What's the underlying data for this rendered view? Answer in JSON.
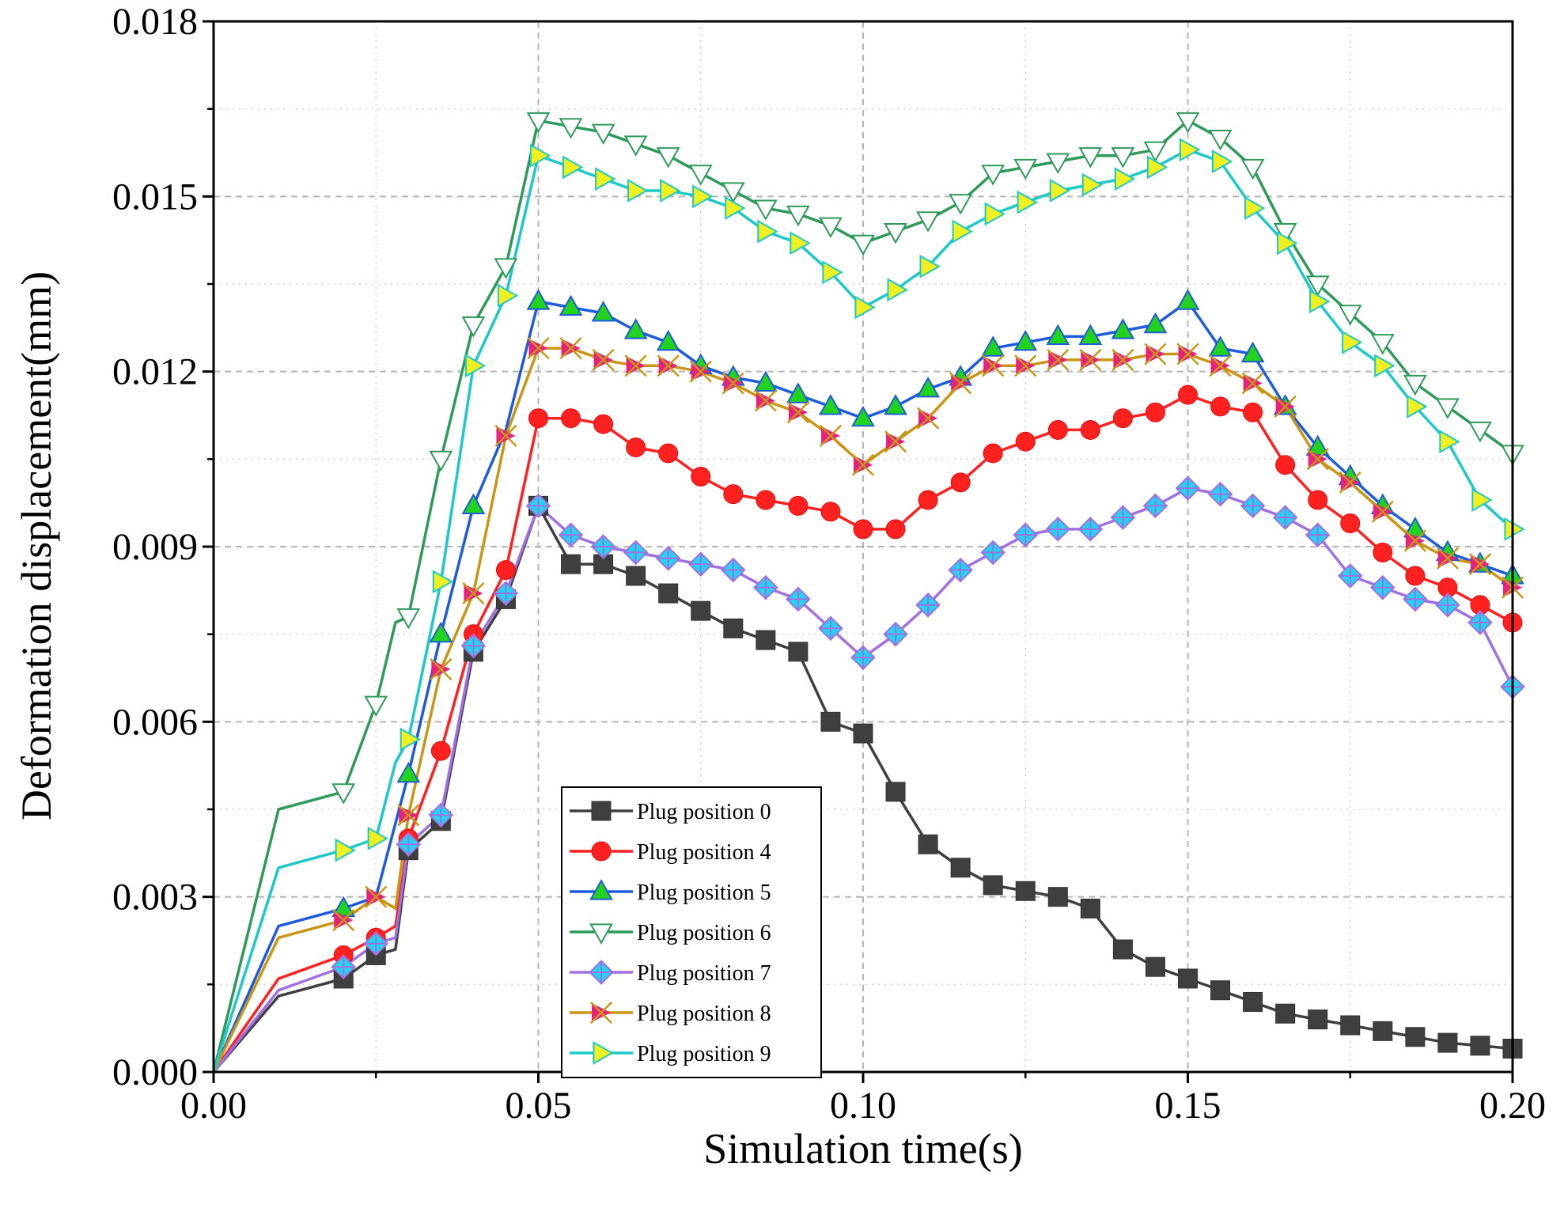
{
  "chart_data": {
    "type": "line",
    "xlabel": "Simulation time(s)",
    "ylabel": "Deformation displacement(mm)",
    "xlim": [
      0,
      0.2
    ],
    "ylim": [
      0,
      0.018
    ],
    "x_ticks": [
      "0.00",
      "0.05",
      "0.10",
      "0.15",
      "0.20"
    ],
    "y_ticks": [
      "0.000",
      "0.003",
      "0.006",
      "0.009",
      "0.012",
      "0.015",
      "0.018"
    ],
    "grid": true,
    "legend_position": "bottom-center",
    "series": [
      {
        "name": "Plug position 0",
        "color": "#3f3f3f",
        "marker": "square",
        "x": [
          0,
          0.01,
          0.02,
          0.025,
          0.028,
          0.03,
          0.035,
          0.04,
          0.045,
          0.05,
          0.055,
          0.06,
          0.065,
          0.07,
          0.075,
          0.08,
          0.085,
          0.09,
          0.095,
          0.1,
          0.105,
          0.11,
          0.115,
          0.12,
          0.125,
          0.13,
          0.135,
          0.14,
          0.145,
          0.15,
          0.155,
          0.16,
          0.165,
          0.17,
          0.175,
          0.18,
          0.185,
          0.19,
          0.195,
          0.2
        ],
        "y": [
          0,
          0.0013,
          0.0016,
          0.002,
          0.0021,
          0.0038,
          0.0043,
          0.0072,
          0.0081,
          0.0097,
          0.0087,
          0.0087,
          0.0085,
          0.0082,
          0.0079,
          0.0076,
          0.0074,
          0.0072,
          0.006,
          0.0058,
          0.0048,
          0.0039,
          0.0035,
          0.0032,
          0.0031,
          0.003,
          0.0028,
          0.0021,
          0.0018,
          0.0016,
          0.0014,
          0.0012,
          0.001,
          0.0009,
          0.0008,
          0.0007,
          0.0006,
          0.0005,
          0.00045,
          0.0004
        ],
        "marker_x": [
          0.02,
          0.025,
          0.03,
          0.035,
          0.04,
          0.045,
          0.05,
          0.055,
          0.06,
          0.065,
          0.07,
          0.075,
          0.08,
          0.085,
          0.09,
          0.095,
          0.1,
          0.105,
          0.11,
          0.115,
          0.12,
          0.125,
          0.13,
          0.135,
          0.14,
          0.145,
          0.15,
          0.155,
          0.16,
          0.165,
          0.17,
          0.175,
          0.18,
          0.185,
          0.19,
          0.195,
          0.2
        ]
      },
      {
        "name": "Plug position 4",
        "color": "#ff2020",
        "marker": "circle",
        "x": [
          0,
          0.01,
          0.02,
          0.025,
          0.028,
          0.03,
          0.035,
          0.04,
          0.045,
          0.05,
          0.055,
          0.06,
          0.065,
          0.07,
          0.075,
          0.08,
          0.085,
          0.09,
          0.095,
          0.1,
          0.105,
          0.11,
          0.115,
          0.12,
          0.125,
          0.13,
          0.135,
          0.14,
          0.145,
          0.15,
          0.155,
          0.16,
          0.165,
          0.17,
          0.175,
          0.18,
          0.185,
          0.19,
          0.195,
          0.2
        ],
        "y": [
          0,
          0.0016,
          0.002,
          0.0023,
          0.0025,
          0.004,
          0.0055,
          0.0075,
          0.0086,
          0.0112,
          0.0112,
          0.0111,
          0.0107,
          0.0106,
          0.0102,
          0.0099,
          0.0098,
          0.0097,
          0.0096,
          0.0093,
          0.0093,
          0.0098,
          0.0101,
          0.0106,
          0.0108,
          0.011,
          0.011,
          0.0112,
          0.0113,
          0.0116,
          0.0114,
          0.0113,
          0.0104,
          0.0098,
          0.0094,
          0.0089,
          0.0085,
          0.0083,
          0.008,
          0.0077
        ],
        "marker_x": [
          0.02,
          0.025,
          0.03,
          0.035,
          0.04,
          0.045,
          0.05,
          0.055,
          0.06,
          0.065,
          0.07,
          0.075,
          0.08,
          0.085,
          0.09,
          0.095,
          0.1,
          0.105,
          0.11,
          0.115,
          0.12,
          0.125,
          0.13,
          0.135,
          0.14,
          0.145,
          0.15,
          0.155,
          0.16,
          0.165,
          0.17,
          0.175,
          0.18,
          0.185,
          0.19,
          0.195,
          0.2
        ]
      },
      {
        "name": "Plug position 5",
        "color": "#1e5adc",
        "marker": "triangle-up",
        "x": [
          0,
          0.01,
          0.02,
          0.025,
          0.03,
          0.035,
          0.04,
          0.045,
          0.05,
          0.055,
          0.06,
          0.065,
          0.07,
          0.075,
          0.08,
          0.085,
          0.09,
          0.095,
          0.1,
          0.105,
          0.11,
          0.115,
          0.12,
          0.125,
          0.13,
          0.135,
          0.14,
          0.145,
          0.15,
          0.155,
          0.16,
          0.165,
          0.17,
          0.175,
          0.18,
          0.185,
          0.19,
          0.195,
          0.2
        ],
        "y": [
          0,
          0.0025,
          0.0028,
          0.003,
          0.0051,
          0.0075,
          0.0097,
          0.011,
          0.0132,
          0.0131,
          0.013,
          0.0127,
          0.0125,
          0.0121,
          0.0119,
          0.0118,
          0.0116,
          0.0114,
          0.0112,
          0.0114,
          0.0117,
          0.0119,
          0.0124,
          0.0125,
          0.0126,
          0.0126,
          0.0127,
          0.0128,
          0.0132,
          0.0124,
          0.0123,
          0.0114,
          0.0107,
          0.0102,
          0.0097,
          0.0093,
          0.0089,
          0.0087,
          0.0085
        ],
        "marker_x": [
          0.02,
          0.03,
          0.035,
          0.04,
          0.05,
          0.055,
          0.06,
          0.065,
          0.07,
          0.075,
          0.08,
          0.085,
          0.09,
          0.095,
          0.1,
          0.105,
          0.11,
          0.115,
          0.12,
          0.125,
          0.13,
          0.135,
          0.14,
          0.145,
          0.15,
          0.155,
          0.16,
          0.165,
          0.17,
          0.175,
          0.18,
          0.185,
          0.19,
          0.195,
          0.2
        ]
      },
      {
        "name": "Plug position 6",
        "color": "#2e9a5a",
        "marker": "triangle-down",
        "x": [
          0,
          0.01,
          0.02,
          0.025,
          0.028,
          0.03,
          0.035,
          0.04,
          0.045,
          0.05,
          0.055,
          0.06,
          0.065,
          0.07,
          0.075,
          0.08,
          0.085,
          0.09,
          0.095,
          0.1,
          0.105,
          0.11,
          0.115,
          0.12,
          0.125,
          0.13,
          0.135,
          0.14,
          0.145,
          0.15,
          0.155,
          0.16,
          0.165,
          0.17,
          0.175,
          0.18,
          0.185,
          0.19,
          0.195,
          0.2
        ],
        "y": [
          0,
          0.0045,
          0.0048,
          0.0063,
          0.0077,
          0.0078,
          0.0105,
          0.0128,
          0.0138,
          0.0163,
          0.0162,
          0.0161,
          0.0159,
          0.0157,
          0.0154,
          0.0151,
          0.0148,
          0.0147,
          0.0145,
          0.0142,
          0.0144,
          0.0146,
          0.0149,
          0.0154,
          0.0155,
          0.0156,
          0.0157,
          0.0157,
          0.0158,
          0.0163,
          0.016,
          0.0155,
          0.0144,
          0.0135,
          0.013,
          0.0125,
          0.0118,
          0.0114,
          0.011,
          0.0106
        ],
        "marker_x": [
          0.02,
          0.025,
          0.03,
          0.035,
          0.04,
          0.045,
          0.05,
          0.055,
          0.06,
          0.065,
          0.07,
          0.075,
          0.08,
          0.085,
          0.09,
          0.095,
          0.1,
          0.105,
          0.11,
          0.115,
          0.12,
          0.125,
          0.13,
          0.135,
          0.14,
          0.145,
          0.15,
          0.155,
          0.16,
          0.165,
          0.17,
          0.175,
          0.18,
          0.185,
          0.19,
          0.195,
          0.2
        ]
      },
      {
        "name": "Plug position 7",
        "color": "#a070e0",
        "marker": "diamond-cross",
        "x": [
          0,
          0.01,
          0.02,
          0.025,
          0.028,
          0.03,
          0.035,
          0.04,
          0.045,
          0.05,
          0.055,
          0.06,
          0.065,
          0.07,
          0.075,
          0.08,
          0.085,
          0.09,
          0.095,
          0.1,
          0.105,
          0.11,
          0.115,
          0.12,
          0.125,
          0.13,
          0.135,
          0.14,
          0.145,
          0.15,
          0.155,
          0.16,
          0.165,
          0.17,
          0.175,
          0.18,
          0.185,
          0.19,
          0.195,
          0.2
        ],
        "y": [
          0,
          0.0014,
          0.0018,
          0.0022,
          0.0023,
          0.0039,
          0.0044,
          0.0073,
          0.0082,
          0.0097,
          0.0092,
          0.009,
          0.0089,
          0.0088,
          0.0087,
          0.0086,
          0.0083,
          0.0081,
          0.0076,
          0.0071,
          0.0075,
          0.008,
          0.0086,
          0.0089,
          0.0092,
          0.0093,
          0.0093,
          0.0095,
          0.0097,
          0.01,
          0.0099,
          0.0097,
          0.0095,
          0.0092,
          0.0085,
          0.0083,
          0.0081,
          0.008,
          0.0077,
          0.0066
        ],
        "marker_x": [
          0.02,
          0.025,
          0.03,
          0.035,
          0.04,
          0.045,
          0.05,
          0.055,
          0.06,
          0.065,
          0.07,
          0.075,
          0.08,
          0.085,
          0.09,
          0.095,
          0.1,
          0.105,
          0.11,
          0.115,
          0.12,
          0.125,
          0.13,
          0.135,
          0.14,
          0.145,
          0.15,
          0.155,
          0.16,
          0.165,
          0.17,
          0.175,
          0.18,
          0.185,
          0.19,
          0.195,
          0.2
        ]
      },
      {
        "name": "Plug position 8",
        "color": "#c89614",
        "marker": "star",
        "x": [
          0,
          0.01,
          0.02,
          0.025,
          0.028,
          0.03,
          0.035,
          0.04,
          0.045,
          0.05,
          0.055,
          0.06,
          0.065,
          0.07,
          0.075,
          0.08,
          0.085,
          0.09,
          0.095,
          0.1,
          0.105,
          0.11,
          0.115,
          0.12,
          0.125,
          0.13,
          0.135,
          0.14,
          0.145,
          0.15,
          0.155,
          0.16,
          0.165,
          0.17,
          0.175,
          0.18,
          0.185,
          0.19,
          0.195,
          0.2
        ],
        "y": [
          0,
          0.0023,
          0.0026,
          0.003,
          0.0028,
          0.0044,
          0.0069,
          0.0082,
          0.0109,
          0.0124,
          0.0124,
          0.0122,
          0.0121,
          0.0121,
          0.012,
          0.0118,
          0.0115,
          0.0113,
          0.0109,
          0.0104,
          0.0108,
          0.0112,
          0.0118,
          0.0121,
          0.0121,
          0.0122,
          0.0122,
          0.0122,
          0.0123,
          0.0123,
          0.0121,
          0.0118,
          0.0114,
          0.0105,
          0.0101,
          0.0096,
          0.0091,
          0.0088,
          0.0087,
          0.0083
        ],
        "marker_x": [
          0.02,
          0.025,
          0.03,
          0.035,
          0.04,
          0.045,
          0.05,
          0.055,
          0.06,
          0.065,
          0.07,
          0.075,
          0.08,
          0.085,
          0.09,
          0.095,
          0.1,
          0.105,
          0.11,
          0.115,
          0.12,
          0.125,
          0.13,
          0.135,
          0.14,
          0.145,
          0.15,
          0.155,
          0.16,
          0.165,
          0.17,
          0.175,
          0.18,
          0.185,
          0.19,
          0.195,
          0.2
        ]
      },
      {
        "name": "Plug position 9",
        "color": "#1ec8c8",
        "marker": "triangle-right",
        "x": [
          0,
          0.01,
          0.02,
          0.025,
          0.028,
          0.03,
          0.035,
          0.04,
          0.045,
          0.05,
          0.055,
          0.06,
          0.065,
          0.07,
          0.075,
          0.08,
          0.085,
          0.09,
          0.095,
          0.1,
          0.105,
          0.11,
          0.115,
          0.12,
          0.125,
          0.13,
          0.135,
          0.14,
          0.145,
          0.15,
          0.155,
          0.16,
          0.165,
          0.17,
          0.175,
          0.18,
          0.185,
          0.19,
          0.195,
          0.2
        ],
        "y": [
          0,
          0.0035,
          0.0038,
          0.004,
          0.0053,
          0.0057,
          0.0084,
          0.0121,
          0.0133,
          0.0157,
          0.0155,
          0.0153,
          0.0151,
          0.0151,
          0.015,
          0.0148,
          0.0144,
          0.0142,
          0.0137,
          0.0131,
          0.0134,
          0.0138,
          0.0144,
          0.0147,
          0.0149,
          0.0151,
          0.0152,
          0.0153,
          0.0155,
          0.0158,
          0.0156,
          0.0148,
          0.0142,
          0.0132,
          0.0125,
          0.0121,
          0.0114,
          0.0108,
          0.0098,
          0.0093
        ],
        "marker_x": [
          0.02,
          0.025,
          0.03,
          0.035,
          0.04,
          0.045,
          0.05,
          0.055,
          0.06,
          0.065,
          0.07,
          0.075,
          0.08,
          0.085,
          0.09,
          0.095,
          0.1,
          0.105,
          0.11,
          0.115,
          0.12,
          0.125,
          0.13,
          0.135,
          0.14,
          0.145,
          0.15,
          0.155,
          0.16,
          0.165,
          0.17,
          0.175,
          0.18,
          0.185,
          0.19,
          0.195,
          0.2
        ]
      }
    ]
  }
}
